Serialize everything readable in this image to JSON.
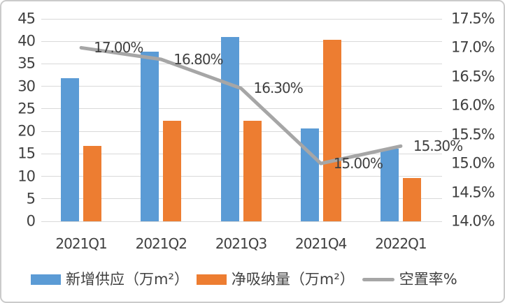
{
  "chart_data": {
    "type": "combo-bar-line",
    "title": "",
    "categories": [
      "2021Q1",
      "2021Q2",
      "2021Q3",
      "2021Q4",
      "2022Q1"
    ],
    "series": [
      {
        "name": "新增供应（万m²）",
        "semantic": "new-supply",
        "type": "bar",
        "axis": "left",
        "color": "#5B9BD5",
        "values": [
          31.8,
          37.7,
          41.0,
          20.6,
          16.1
        ]
      },
      {
        "name": "净吸纳量（万m²）",
        "semantic": "net-absorption",
        "type": "bar",
        "axis": "left",
        "color": "#ED7D31",
        "values": [
          16.7,
          22.4,
          22.4,
          40.4,
          9.6
        ]
      },
      {
        "name": "空置率%",
        "semantic": "vacancy-rate",
        "type": "line",
        "axis": "right",
        "color": "#A6A6A6",
        "values": [
          17.0,
          16.8,
          16.3,
          15.0,
          15.3
        ],
        "point_labels": [
          "17.00%",
          "16.80%",
          "16.30%",
          "15.00%",
          "15.30%"
        ]
      }
    ],
    "left_axis": {
      "min": 0,
      "max": 45,
      "step": 5,
      "ticks": [
        "45",
        "40",
        "35",
        "30",
        "25",
        "20",
        "15",
        "10",
        "5",
        "0"
      ]
    },
    "right_axis": {
      "min": 14.0,
      "max": 17.5,
      "step": 0.5,
      "ticks": [
        "17.5%",
        "17.0%",
        "16.5%",
        "16.0%",
        "15.5%",
        "15.0%",
        "14.5%",
        "14.0%"
      ]
    },
    "grid": true,
    "legend_position": "bottom",
    "colors": {
      "grid": "#D9D9D9",
      "text": "#404040",
      "border": "#CBCBCB",
      "background": "#FFFFFF"
    }
  }
}
